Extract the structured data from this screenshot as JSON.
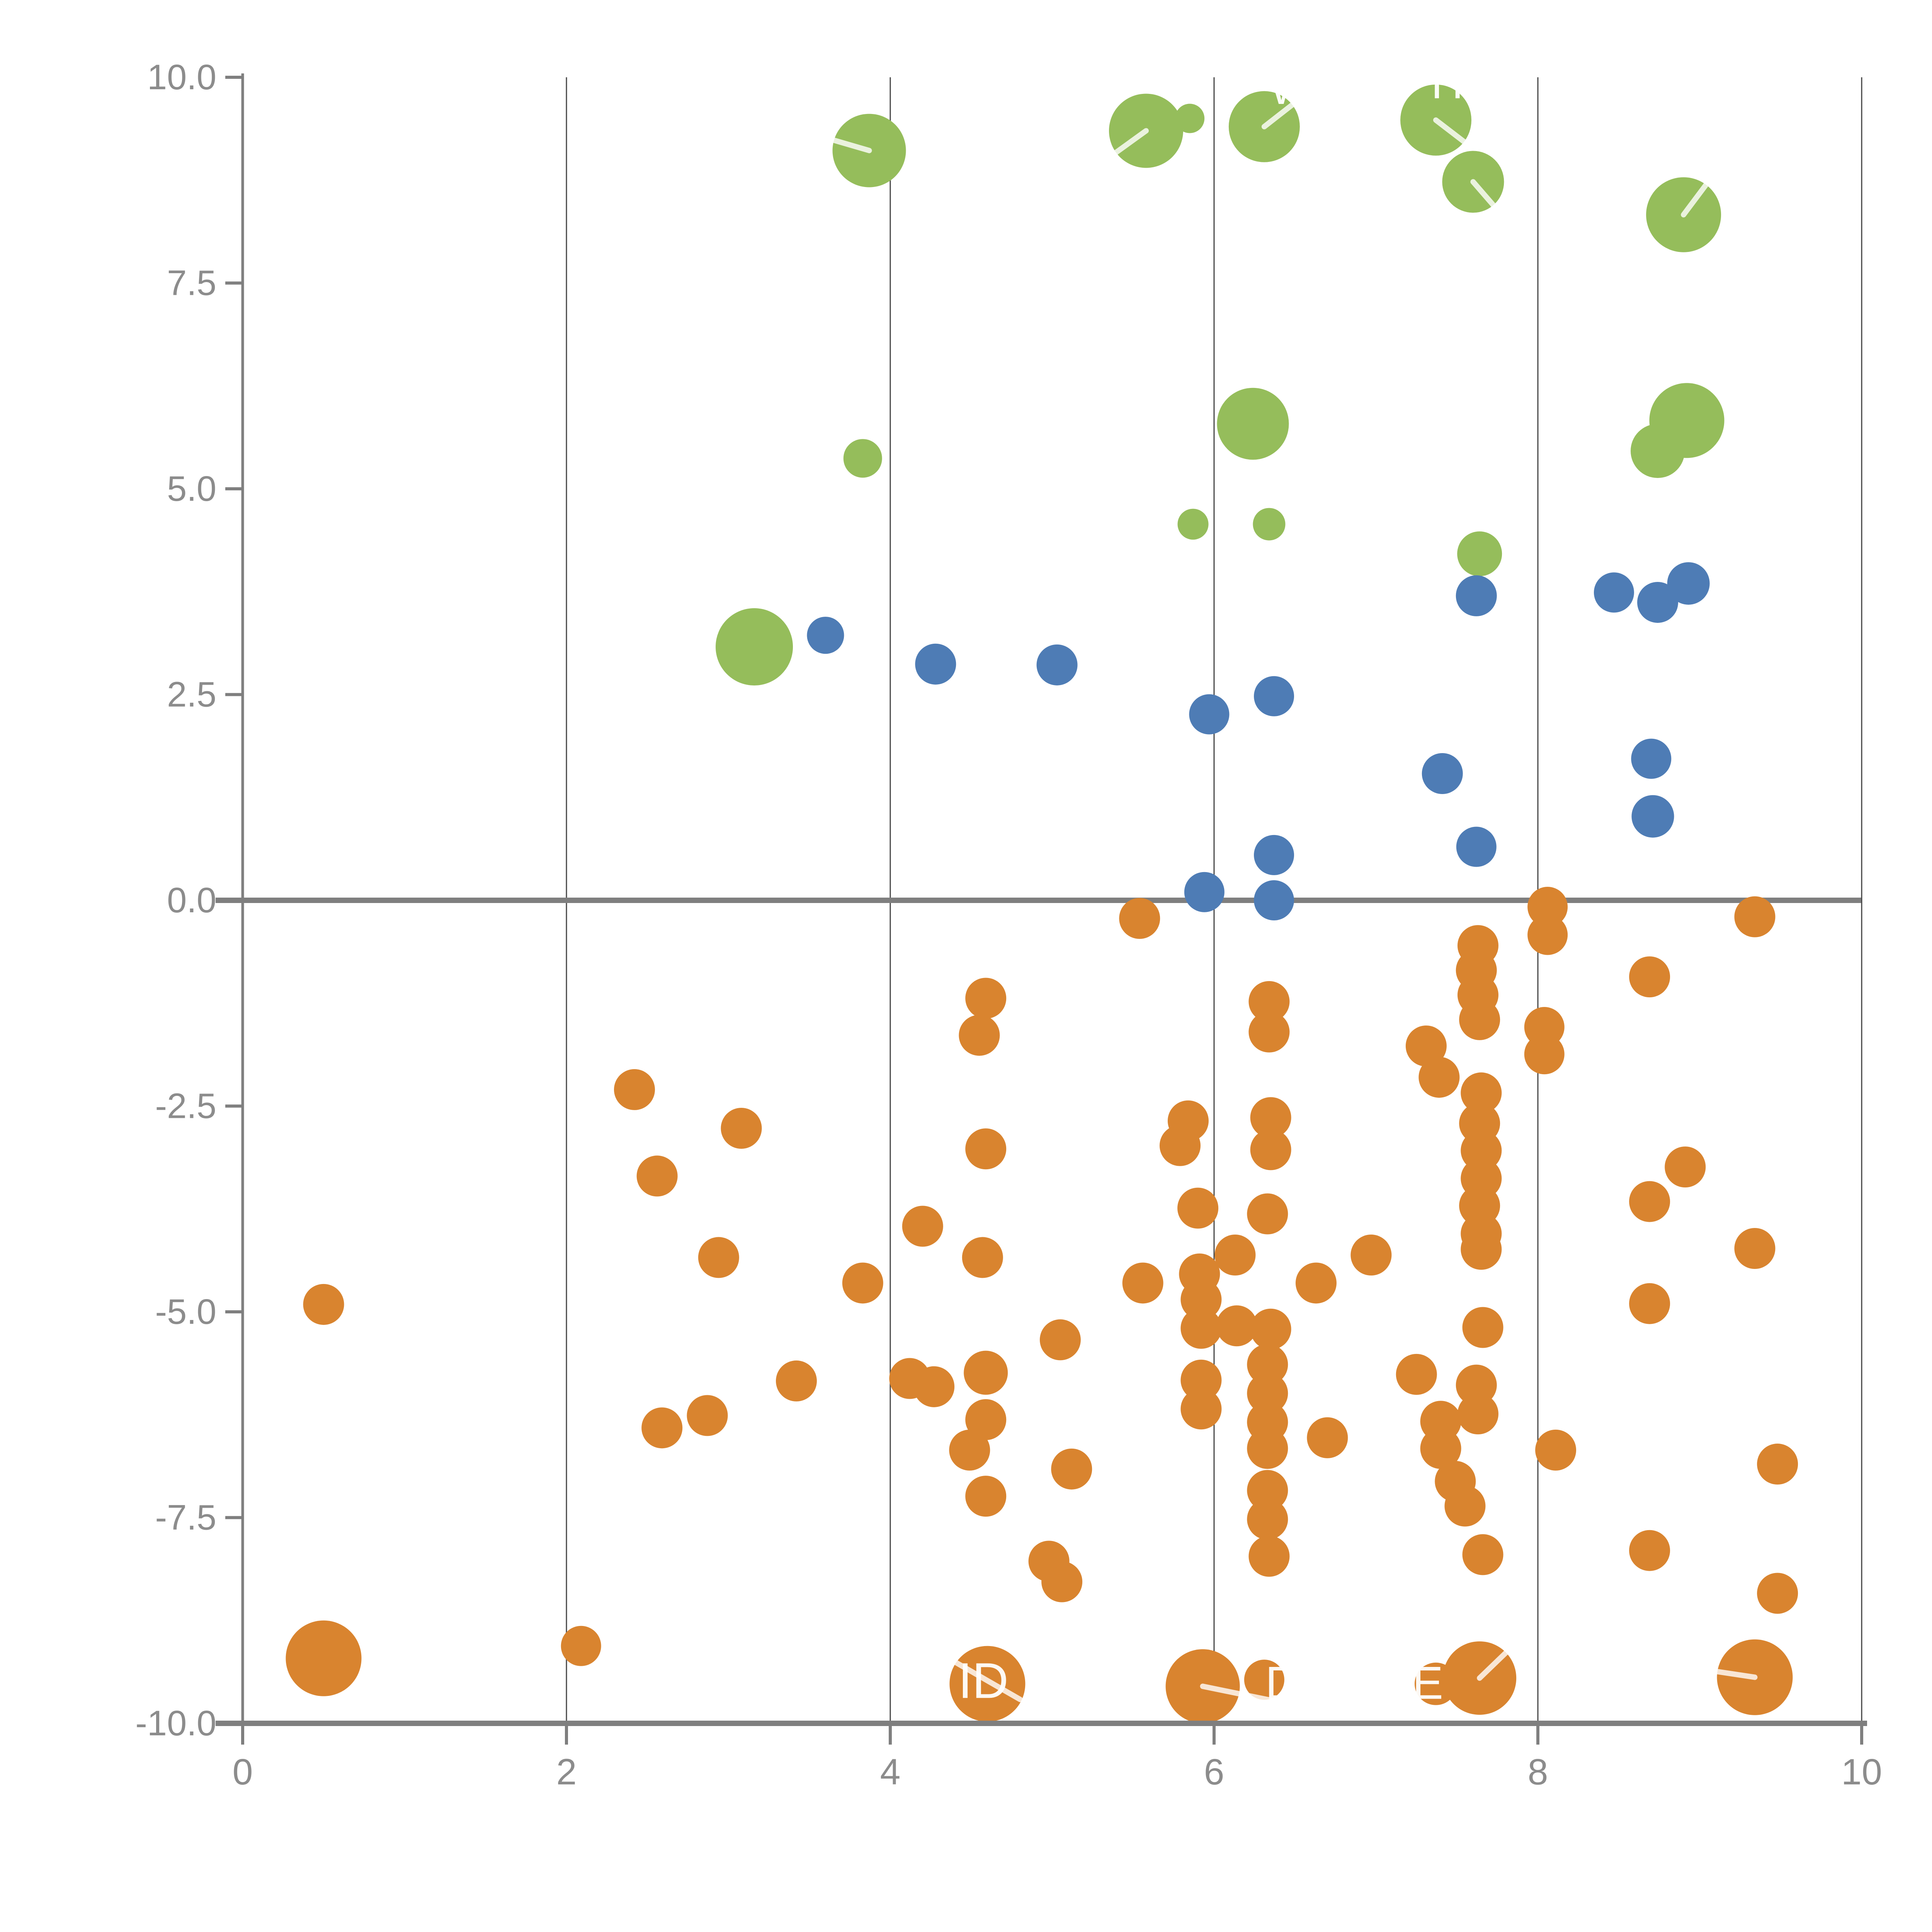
{
  "chart_data": {
    "type": "scatter",
    "title": "",
    "xlabel": "",
    "ylabel": "",
    "xlim": [
      0,
      10
    ],
    "ylim": [
      -10,
      10
    ],
    "grid": true,
    "x_ticks": [
      "0",
      "2",
      "4",
      "6",
      "8",
      "10"
    ],
    "x_tick_values": [
      0,
      2,
      4,
      6,
      8,
      10
    ],
    "y_ticks": [
      "10.0",
      "7.5",
      "5.0",
      "2.5",
      "0.0",
      "-2.5",
      "-5.0",
      "-7.5",
      "-10.0"
    ],
    "y_tick_values": [
      10,
      7.5,
      5,
      2.5,
      0,
      -2.5,
      -5,
      -7.5,
      -10
    ],
    "grid_x_values": [
      2,
      4,
      6,
      8,
      10
    ],
    "zero_line_y": 0,
    "colors": {
      "green": "#95bd5b",
      "blue": "#4e7cb5",
      "orange": "#d9842f",
      "axis": "#7f7f7f",
      "grid": "#454545",
      "tick_text": "#8c8c8c",
      "annotation": "#ffffff"
    },
    "series": [
      {
        "name": "green",
        "points": [
          [
            3.87,
            9.11,
            95
          ],
          [
            5.58,
            9.35,
            96
          ],
          [
            5.85,
            9.5,
            38
          ],
          [
            6.31,
            9.4,
            92
          ],
          [
            7.37,
            9.48,
            92
          ],
          [
            7.6,
            8.73,
            80
          ],
          [
            8.9,
            8.33,
            97
          ],
          [
            6.24,
            5.79,
            93
          ],
          [
            3.83,
            5.37,
            50
          ],
          [
            5.87,
            4.57,
            40
          ],
          [
            6.34,
            4.57,
            42
          ],
          [
            7.64,
            4.21,
            58
          ],
          [
            3.16,
            3.08,
            100
          ],
          [
            8.92,
            5.83,
            97
          ],
          [
            8.74,
            5.46,
            70
          ]
        ]
      },
      {
        "name": "blue",
        "points": [
          [
            3.6,
            3.22,
            48
          ],
          [
            4.28,
            2.87,
            53
          ],
          [
            5.03,
            2.86,
            53
          ],
          [
            5.97,
            2.26,
            52
          ],
          [
            6.37,
            2.48,
            52
          ],
          [
            7.62,
            3.7,
            53
          ],
          [
            8.47,
            3.74,
            52
          ],
          [
            8.74,
            3.62,
            53
          ],
          [
            8.93,
            3.85,
            55
          ],
          [
            7.41,
            1.54,
            53
          ],
          [
            8.7,
            1.72,
            52
          ],
          [
            8.71,
            1.02,
            55
          ],
          [
            7.62,
            0.65,
            52
          ],
          [
            6.37,
            0.55,
            52
          ],
          [
            5.94,
            0.1,
            52
          ],
          [
            6.37,
            0.0,
            52
          ]
        ]
      },
      {
        "name": "orange",
        "points": [
          [
            5.54,
            -0.22,
            53
          ],
          [
            8.06,
            -0.08,
            52
          ],
          [
            8.06,
            -0.42,
            52
          ],
          [
            9.34,
            -0.2,
            53
          ],
          [
            7.63,
            -0.55,
            53
          ],
          [
            7.62,
            -0.85,
            53
          ],
          [
            7.63,
            -1.15,
            53
          ],
          [
            7.64,
            -1.45,
            53
          ],
          [
            6.34,
            -1.23,
            53
          ],
          [
            6.34,
            -1.6,
            53
          ],
          [
            4.59,
            -1.19,
            53
          ],
          [
            4.55,
            -1.64,
            53
          ],
          [
            8.69,
            -0.93,
            53
          ],
          [
            2.42,
            -2.3,
            53
          ],
          [
            7.31,
            -1.77,
            53
          ],
          [
            7.39,
            -2.15,
            53
          ],
          [
            8.04,
            -1.54,
            52
          ],
          [
            8.04,
            -1.87,
            52
          ],
          [
            3.08,
            -2.77,
            53
          ],
          [
            2.56,
            -3.35,
            53
          ],
          [
            2.94,
            -4.34,
            53
          ],
          [
            3.83,
            -4.65,
            53
          ],
          [
            4.2,
            -3.96,
            53
          ],
          [
            4.59,
            -3.02,
            53
          ],
          [
            4.57,
            -4.34,
            53
          ],
          [
            5.84,
            -2.68,
            53
          ],
          [
            5.79,
            -2.98,
            53
          ],
          [
            5.9,
            -3.74,
            53
          ],
          [
            6.35,
            -2.64,
            53
          ],
          [
            6.35,
            -3.03,
            53
          ],
          [
            6.33,
            -3.81,
            53
          ],
          [
            6.13,
            -4.31,
            53
          ],
          [
            5.56,
            -4.65,
            53
          ],
          [
            6.63,
            -4.65,
            53
          ],
          [
            6.97,
            -4.31,
            53
          ],
          [
            7.65,
            -2.34,
            53
          ],
          [
            7.64,
            -2.71,
            53
          ],
          [
            7.65,
            -3.04,
            53
          ],
          [
            7.65,
            -3.38,
            53
          ],
          [
            7.64,
            -3.71,
            53
          ],
          [
            7.65,
            -4.05,
            53
          ],
          [
            8.91,
            -3.24,
            53
          ],
          [
            8.69,
            -3.66,
            53
          ],
          [
            9.34,
            -4.23,
            53
          ],
          [
            8.69,
            -4.9,
            53
          ],
          [
            0.5,
            -4.91,
            53
          ],
          [
            5.91,
            -4.54,
            53
          ],
          [
            5.92,
            -4.85,
            53
          ],
          [
            5.92,
            -5.2,
            53
          ],
          [
            6.14,
            -5.17,
            53
          ],
          [
            6.35,
            -5.21,
            53
          ],
          [
            7.65,
            -4.24,
            53
          ],
          [
            7.66,
            -5.19,
            53
          ],
          [
            2.59,
            -6.41,
            53
          ],
          [
            2.87,
            -6.26,
            53
          ],
          [
            3.42,
            -5.84,
            53
          ],
          [
            4.12,
            -5.81,
            53
          ],
          [
            4.27,
            -5.91,
            53
          ],
          [
            4.59,
            -5.74,
            57
          ],
          [
            4.59,
            -6.31,
            53
          ],
          [
            4.49,
            -6.68,
            53
          ],
          [
            4.59,
            -7.24,
            53
          ],
          [
            5.05,
            -5.34,
            53
          ],
          [
            5.12,
            -6.91,
            53
          ],
          [
            4.98,
            -8.03,
            53
          ],
          [
            5.06,
            -8.28,
            53
          ],
          [
            5.92,
            -5.83,
            53
          ],
          [
            5.92,
            -6.18,
            53
          ],
          [
            6.33,
            -5.64,
            53
          ],
          [
            6.33,
            -5.99,
            53
          ],
          [
            6.33,
            -6.34,
            53
          ],
          [
            6.33,
            -6.66,
            53
          ],
          [
            6.33,
            -7.17,
            53
          ],
          [
            6.33,
            -7.52,
            53
          ],
          [
            6.34,
            -7.97,
            53
          ],
          [
            6.7,
            -6.53,
            53
          ],
          [
            7.25,
            -5.76,
            53
          ],
          [
            7.4,
            -6.33,
            53
          ],
          [
            7.4,
            -6.66,
            53
          ],
          [
            7.62,
            -5.89,
            53
          ],
          [
            7.63,
            -6.24,
            53
          ],
          [
            7.49,
            -7.06,
            53
          ],
          [
            7.55,
            -7.36,
            53
          ],
          [
            7.66,
            -7.95,
            53
          ],
          [
            8.11,
            -6.68,
            53
          ],
          [
            9.48,
            -6.85,
            53
          ],
          [
            8.69,
            -7.9,
            53
          ],
          [
            9.48,
            -8.42,
            53
          ],
          [
            0.5,
            -9.21,
            98
          ],
          [
            2.09,
            -9.06,
            52
          ],
          [
            4.6,
            -9.52,
            98
          ],
          [
            5.93,
            -9.55,
            96
          ],
          [
            6.31,
            -9.47,
            52
          ],
          [
            7.37,
            -9.52,
            55
          ],
          [
            7.64,
            -9.45,
            95
          ],
          [
            9.34,
            -9.44,
            98
          ]
        ]
      }
    ],
    "annotations": [
      {
        "text": "WI",
        "x": 6.51,
        "y": 9.86,
        "size": 115
      },
      {
        "text": "H",
        "x": 7.44,
        "y": 9.93,
        "size": 115
      },
      {
        "text": "ID",
        "x": 4.575,
        "y": -9.48,
        "size": 130
      },
      {
        "text": "D",
        "x": 6.42,
        "y": -9.51,
        "size": 120
      },
      {
        "text": "E",
        "x": 7.32,
        "y": -9.51,
        "size": 120
      }
    ],
    "leader_lines": [
      [
        3.87,
        9.11,
        3.556,
        9.29
      ],
      [
        5.58,
        9.35,
        5.291,
        8.94
      ],
      [
        6.31,
        9.4,
        6.525,
        9.73
      ],
      [
        7.37,
        9.48,
        7.582,
        9.16
      ],
      [
        7.6,
        8.73,
        7.785,
        8.31
      ],
      [
        8.9,
        8.33,
        9.098,
        8.85
      ],
      [
        4.396,
        -9.25,
        4.802,
        -9.71
      ],
      [
        5.93,
        -9.55,
        6.377,
        -9.73
      ],
      [
        7.64,
        -9.45,
        7.893,
        -8.97
      ],
      [
        9.34,
        -9.44,
        9.003,
        -9.34
      ]
    ]
  }
}
